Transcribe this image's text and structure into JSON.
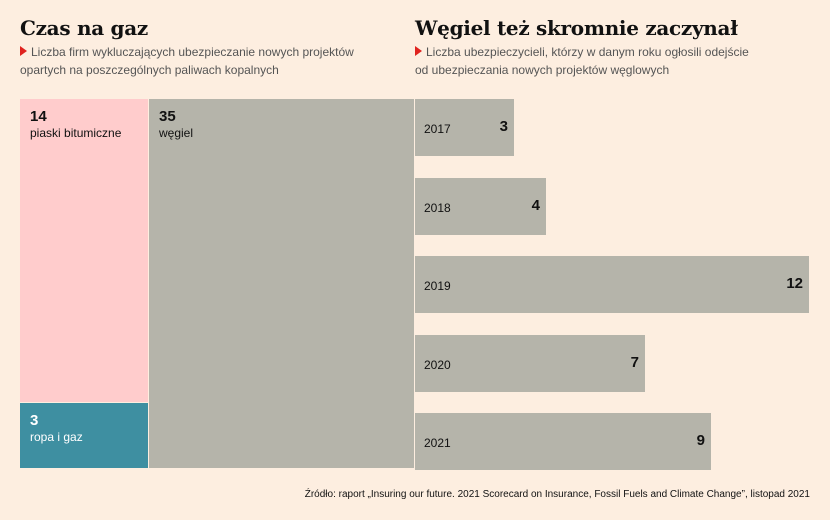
{
  "left": {
    "title": "Czas na gaz",
    "subtitle_lines": [
      "Liczba firm wykluczających ubezpieczanie nowych projektów",
      "opartych na poszczególnych paliwach kopalnych"
    ]
  },
  "right": {
    "title": "Węgiel też skromnie zaczynał",
    "subtitle_lines": [
      "Liczba ubezpieczycieli, którzy w danym roku ogłosili odejście",
      "od ubezpieczania nowych projektów węglowych"
    ]
  },
  "source": "Źródło: raport „Insuring our future. 2021 Scorecard on Insurance, Fossil Fuels and Climate Change”, listopad 2021",
  "colors": {
    "background": "#fdeee0",
    "pink": "#ffcccc",
    "teal": "#3e8fa1",
    "gray": "#b5b4aa",
    "accent": "#e0231f"
  },
  "chart_data": [
    {
      "type": "treemap",
      "items": [
        {
          "label": "piaski bitumiczne",
          "value": 14,
          "color": "#ffcccc"
        },
        {
          "label": "ropa i gaz",
          "value": 3,
          "color": "#3e8fa1"
        },
        {
          "label": "węgiel",
          "value": 35,
          "color": "#b5b4aa"
        }
      ]
    },
    {
      "type": "bar",
      "orientation": "horizontal",
      "categories": [
        "2017",
        "2018",
        "2019",
        "2020",
        "2021"
      ],
      "values": [
        3,
        4,
        12,
        7,
        9
      ],
      "xlim": [
        0,
        12
      ],
      "color": "#b5b4aa"
    }
  ]
}
